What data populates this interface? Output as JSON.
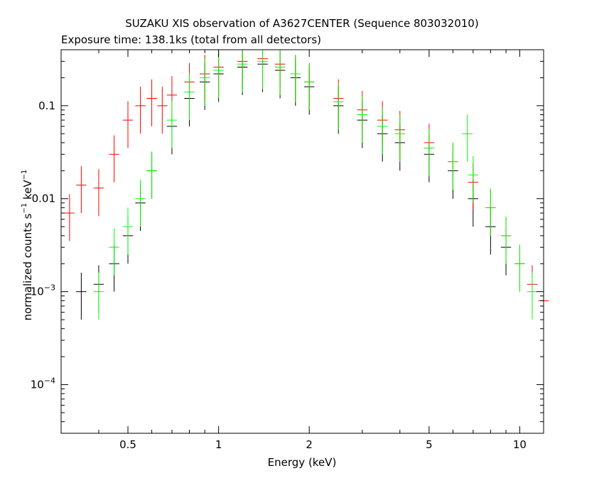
{
  "chart_data": {
    "type": "scatter",
    "title": "SUZAKU XIS observation of A3627CENTER (Sequence 803032010)",
    "subtitle": "Exposure time: 138.1ks (total from all detectors)",
    "xlabel": "Energy (keV)",
    "ylabel_parts": {
      "base": "normalized counts s",
      "sup1": "−1",
      "mid": " keV",
      "sup2": "−1"
    },
    "x_scale": "log",
    "y_scale": "log",
    "xlim": [
      0.3,
      12
    ],
    "ylim": [
      3e-05,
      0.4
    ],
    "x_ticks": [
      {
        "value": 0.5,
        "label": "0.5"
      },
      {
        "value": 1,
        "label": "1"
      },
      {
        "value": 2,
        "label": "2"
      },
      {
        "value": 5,
        "label": "5"
      },
      {
        "value": 10,
        "label": "10"
      }
    ],
    "y_ticks": [
      {
        "value": 0.1,
        "label": "0.1"
      },
      {
        "value": 0.01,
        "label": "0.01"
      },
      {
        "value": 0.001,
        "base": "10",
        "exp": "−3"
      },
      {
        "value": 0.0001,
        "base": "10",
        "exp": "−4"
      }
    ],
    "series": [
      {
        "color": "#000000",
        "x": [
          0.35,
          0.4,
          0.45,
          0.5,
          0.55,
          0.6,
          0.7,
          0.8,
          0.9,
          1.0,
          1.2,
          1.4,
          1.6,
          1.8,
          2.0,
          2.5,
          3.0,
          3.5,
          4.0,
          5.0,
          6.0,
          7.0,
          8.0,
          9.0
        ],
        "y": [
          0.001,
          0.0012,
          0.002,
          0.004,
          0.009,
          0.02,
          0.06,
          0.12,
          0.18,
          0.22,
          0.26,
          0.28,
          0.24,
          0.2,
          0.16,
          0.1,
          0.07,
          0.05,
          0.04,
          0.03,
          0.02,
          0.01,
          0.005,
          0.003
        ]
      },
      {
        "color": "#ff0000",
        "x": [
          0.32,
          0.35,
          0.4,
          0.45,
          0.5,
          0.55,
          0.6,
          0.65,
          0.7,
          0.8,
          0.9,
          1.0,
          1.2,
          1.4,
          1.6,
          1.8,
          2.0,
          2.5,
          3.0,
          3.5,
          4.0,
          5.0,
          6.0,
          7.0,
          8.0,
          9.0,
          10.0,
          11.0,
          12.0
        ],
        "y": [
          0.007,
          0.014,
          0.013,
          0.03,
          0.07,
          0.1,
          0.12,
          0.1,
          0.13,
          0.18,
          0.22,
          0.26,
          0.3,
          0.32,
          0.28,
          0.22,
          0.18,
          0.12,
          0.09,
          0.07,
          0.055,
          0.04,
          0.025,
          0.015,
          0.008,
          0.004,
          0.002,
          0.0012,
          0.0008
        ]
      },
      {
        "color": "#00ff00",
        "x": [
          0.4,
          0.45,
          0.5,
          0.55,
          0.6,
          0.7,
          0.8,
          0.9,
          1.0,
          1.2,
          1.4,
          1.6,
          1.8,
          2.0,
          2.5,
          3.0,
          3.5,
          4.0,
          5.0,
          6.0,
          6.7,
          7.0,
          8.0,
          9.0,
          10.0,
          11.0
        ],
        "y": [
          0.001,
          0.003,
          0.005,
          0.01,
          0.02,
          0.07,
          0.14,
          0.2,
          0.24,
          0.28,
          0.3,
          0.26,
          0.22,
          0.18,
          0.11,
          0.08,
          0.06,
          0.05,
          0.035,
          0.025,
          0.05,
          0.018,
          0.008,
          0.004,
          0.002,
          0.001
        ]
      }
    ],
    "grid": false,
    "legend": "none"
  }
}
